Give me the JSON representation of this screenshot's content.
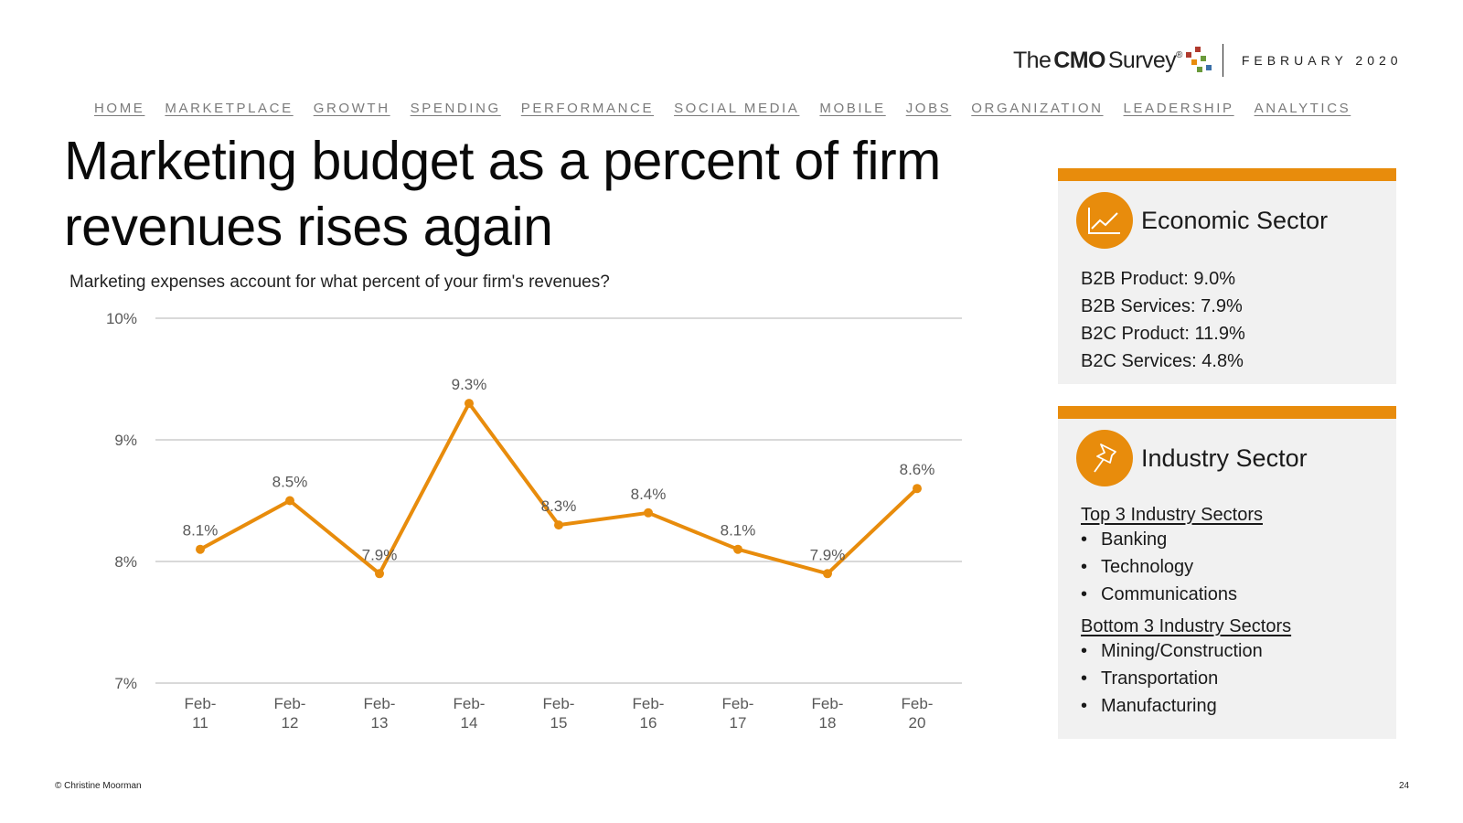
{
  "brand": {
    "logo_the": "The",
    "logo_cmo": "CMO",
    "logo_survey": "Survey",
    "logo_registered": "®",
    "date": "FEBRUARY 2020"
  },
  "nav": [
    "HOME",
    "MARKETPLACE",
    "GROWTH",
    "SPENDING",
    "PERFORMANCE",
    "SOCIAL MEDIA",
    "MOBILE",
    "JOBS",
    "ORGANIZATION",
    "LEADERSHIP",
    "ANALYTICS"
  ],
  "title": "Marketing budget as a percent of firm revenues rises again",
  "question": "Marketing expenses account for what percent of your firm's revenues?",
  "chart_data": {
    "type": "line",
    "categories": [
      "Feb-11",
      "Feb-12",
      "Feb-13",
      "Feb-14",
      "Feb-15",
      "Feb-16",
      "Feb-17",
      "Feb-18",
      "Feb-20"
    ],
    "values": [
      8.1,
      8.5,
      7.9,
      9.3,
      8.3,
      8.4,
      8.1,
      7.9,
      8.6
    ],
    "data_labels": [
      "8.1%",
      "8.5%",
      "7.9%",
      "9.3%",
      "8.3%",
      "8.4%",
      "8.1%",
      "7.9%",
      "8.6%"
    ],
    "ylim": [
      7,
      10
    ],
    "y_ticks": [
      7,
      8,
      9,
      10
    ],
    "y_tick_labels": [
      "7%",
      "8%",
      "9%",
      "10%"
    ],
    "grid": true,
    "legend": "none",
    "line_color": "#E88C0C",
    "grid_color": "#D9D9D9"
  },
  "economic_sector": {
    "title": "Economic Sector",
    "icon": "line-chart-icon",
    "items": [
      "B2B Product: 9.0%",
      "B2B Services: 7.9%",
      "B2C Product: 11.9%",
      "B2C Services: 4.8%"
    ]
  },
  "industry_sector": {
    "title": "Industry Sector",
    "icon": "pushpin-icon",
    "top_heading": "Top 3 Industry Sectors",
    "top": [
      "Banking",
      "Technology",
      "Communications"
    ],
    "bottom_heading": "Bottom 3 Industry Sectors",
    "bottom": [
      "Mining/Construction",
      "Transportation",
      "Manufacturing"
    ]
  },
  "footer": {
    "copyright": "© Christine Moorman",
    "page_number": "24"
  },
  "colors": {
    "accent": "#E88C0C",
    "card_bg": "#F1F1F1",
    "nav_text": "#7B7B7B",
    "logo_dot_red": "#B03A2E",
    "logo_dot_orange": "#E88C0C",
    "logo_dot_green": "#6A9A3B",
    "logo_dot_blue": "#3A6FA8"
  }
}
